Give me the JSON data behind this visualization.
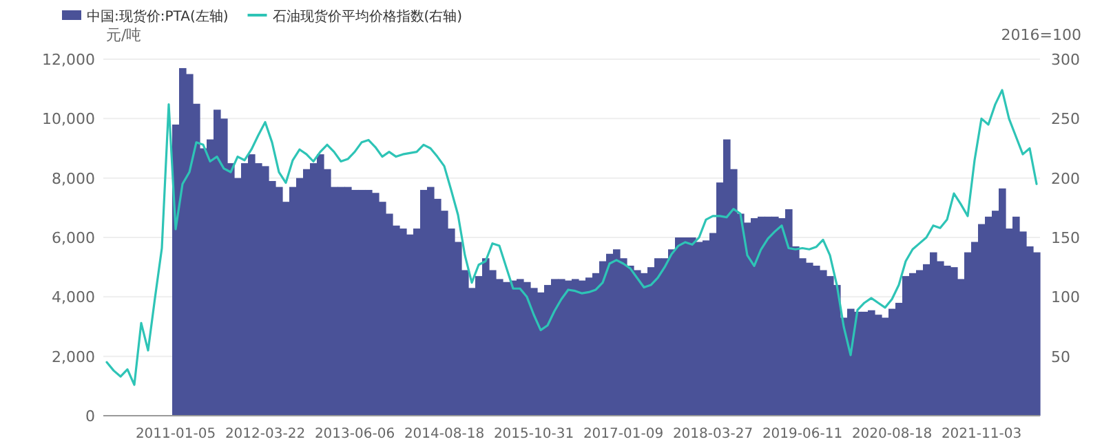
{
  "chart_data": {
    "type": "bar",
    "categories": [
      null,
      null,
      null,
      null,
      null,
      null,
      null,
      null,
      null,
      null,
      "2011-01-05",
      null,
      null,
      null,
      null,
      null,
      null,
      null,
      null,
      null,
      null,
      null,
      null,
      "2012-03-22",
      null,
      null,
      null,
      null,
      null,
      null,
      null,
      null,
      null,
      null,
      null,
      null,
      "2013-06-06",
      null,
      null,
      null,
      null,
      null,
      null,
      null,
      null,
      null,
      null,
      null,
      null,
      "2014-08-18",
      null,
      null,
      null,
      null,
      null,
      null,
      null,
      null,
      null,
      null,
      null,
      null,
      "2015-10-31",
      null,
      null,
      null,
      null,
      null,
      null,
      null,
      null,
      null,
      null,
      null,
      null,
      "2017-01-09",
      null,
      null,
      null,
      null,
      null,
      null,
      null,
      null,
      null,
      null,
      null,
      null,
      "2018-03-27",
      null,
      null,
      null,
      null,
      null,
      null,
      null,
      null,
      null,
      null,
      null,
      null,
      "2019-06-11",
      null,
      null,
      null,
      null,
      null,
      null,
      null,
      null,
      null,
      null,
      null,
      null,
      "2020-08-18",
      null,
      null,
      null,
      null,
      null,
      null,
      null,
      null,
      null,
      null,
      null,
      null,
      "2021-11-03",
      null,
      null,
      null,
      null,
      null,
      null,
      null,
      null
    ],
    "series": [
      {
        "name": "中国:现货价:PTA(左轴)",
        "color": "#4a5298",
        "values": [
          null,
          null,
          null,
          null,
          null,
          null,
          null,
          null,
          null,
          null,
          9800,
          11700,
          11500,
          10500,
          9000,
          9300,
          10300,
          10000,
          8500,
          8000,
          8500,
          8800,
          8500,
          8400,
          7900,
          7700,
          7200,
          7700,
          8000,
          8300,
          8500,
          8800,
          8300,
          7700,
          7700,
          7700,
          7600,
          7600,
          7600,
          7500,
          7200,
          6800,
          6400,
          6300,
          6100,
          6300,
          7600,
          7700,
          7300,
          6900,
          6300,
          5850,
          4900,
          4300,
          4700,
          5300,
          4900,
          4600,
          4500,
          4550,
          4600,
          4500,
          4300,
          4150,
          4400,
          4600,
          4600,
          4550,
          4600,
          4550,
          4650,
          4800,
          5200,
          5450,
          5600,
          5300,
          5050,
          4900,
          4800,
          5000,
          5300,
          5300,
          5600,
          6000,
          6000,
          6000,
          5850,
          5900,
          6150,
          7850,
          9300,
          8300,
          6800,
          6500,
          6650,
          6700,
          6700,
          6700,
          6650,
          6950,
          5700,
          5300,
          5150,
          5050,
          4900,
          4700,
          4400,
          3300,
          3600,
          3500,
          3500,
          3550,
          3400,
          3300,
          3600,
          3800,
          4700,
          4800,
          4900,
          5100,
          5500,
          5200,
          5050,
          5000,
          4600,
          5500,
          5850,
          6450,
          6700,
          6900,
          7650,
          6300,
          6700,
          6200,
          5700,
          5500
        ]
      },
      {
        "name": "石油现货价平均价格指数(右轴)",
        "type": "line",
        "axis": "y2",
        "color": "#2ec4b6",
        "values": [
          45,
          38,
          33,
          39,
          26,
          78,
          55,
          99,
          141,
          262,
          157,
          195,
          205,
          230,
          228,
          214,
          218,
          208,
          205,
          218,
          215,
          224,
          236,
          247,
          230,
          205,
          196,
          215,
          224,
          220,
          214,
          222,
          228,
          222,
          214,
          216,
          222,
          230,
          232,
          226,
          218,
          222,
          218,
          220,
          221,
          222,
          228,
          225,
          218,
          210,
          190,
          169,
          135,
          112,
          127,
          130,
          145,
          143,
          125,
          107,
          107,
          100,
          85,
          72,
          76,
          88,
          98,
          106,
          105,
          103,
          104,
          106,
          112,
          128,
          131,
          128,
          124,
          116,
          108,
          110,
          116,
          125,
          136,
          143,
          146,
          144,
          150,
          165,
          168,
          168,
          167,
          174,
          170,
          135,
          126,
          140,
          149,
          155,
          160,
          141,
          140,
          141,
          140,
          142,
          148,
          135,
          110,
          75,
          51,
          89,
          95,
          99,
          95,
          91,
          98,
          110,
          130,
          140,
          145,
          150,
          160,
          158,
          165,
          187,
          178,
          168,
          215,
          250,
          245,
          262,
          274,
          250,
          235,
          220,
          225,
          195
        ]
      }
    ],
    "ylabel": "元/吨",
    "y2label": "2016=100",
    "ylim": [
      0,
      12000
    ],
    "yticks": [
      {
        "value": 0,
        "label": "0"
      },
      {
        "value": 2000,
        "label": "2,000"
      },
      {
        "value": 4000,
        "label": "4,000"
      },
      {
        "value": 6000,
        "label": "6,000"
      },
      {
        "value": 8000,
        "label": "8,000"
      },
      {
        "value": 10000,
        "label": "10,000"
      },
      {
        "value": 12000,
        "label": "12,000"
      }
    ],
    "y2lim": [
      0,
      300
    ],
    "y2ticks": [
      50,
      100,
      150,
      200,
      250,
      300
    ],
    "grid": "y",
    "legend": "top left"
  }
}
